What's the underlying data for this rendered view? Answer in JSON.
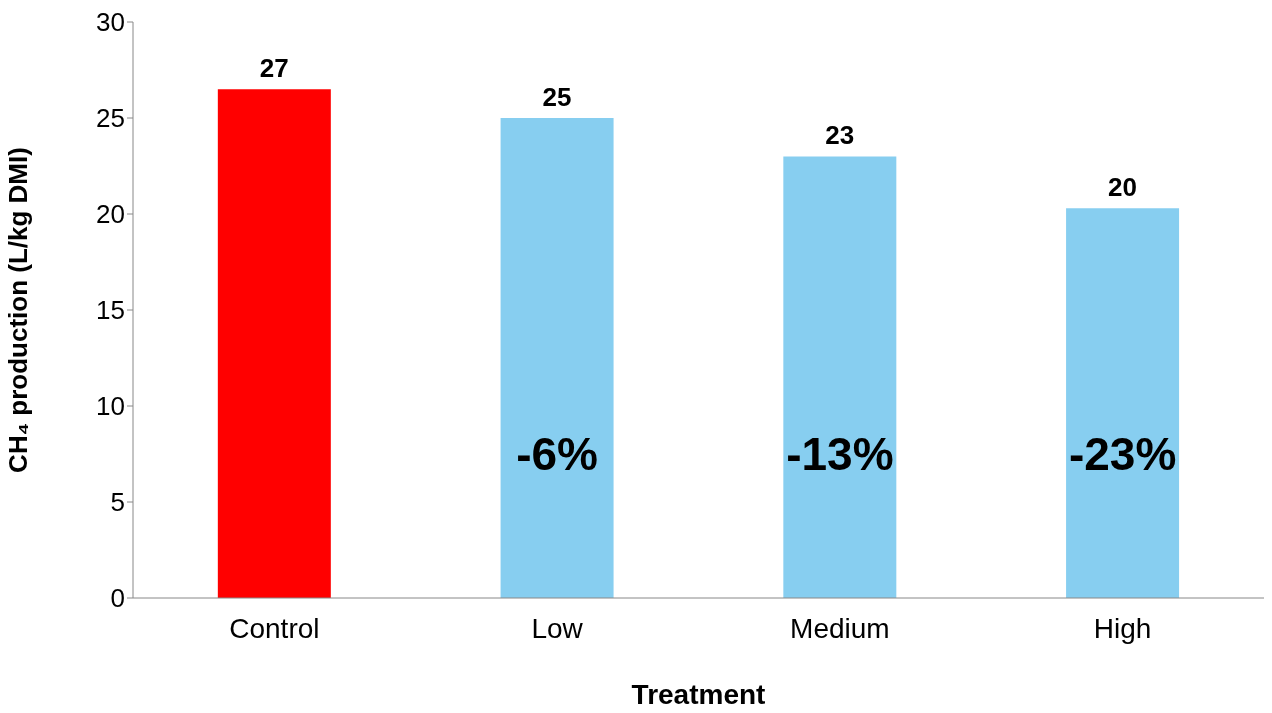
{
  "chart_data": {
    "type": "bar",
    "xlabel": "Treatment",
    "ylabel": "CH₄ production (L/kg DMI)",
    "categories": [
      "Control",
      "Low",
      "Medium",
      "High"
    ],
    "values": [
      26.5,
      25,
      23,
      20.3
    ],
    "colors": [
      "#ff0000",
      "#87cef0",
      "#87cef0",
      "#87cef0"
    ],
    "value_labels": [
      "27",
      "25",
      "23",
      "20"
    ],
    "ylim": [
      0,
      30
    ],
    "yticks": [
      0,
      5,
      10,
      15,
      20,
      25,
      30
    ],
    "grid": false,
    "annotations": [
      "-6%",
      "-13%",
      "-23%"
    ]
  }
}
